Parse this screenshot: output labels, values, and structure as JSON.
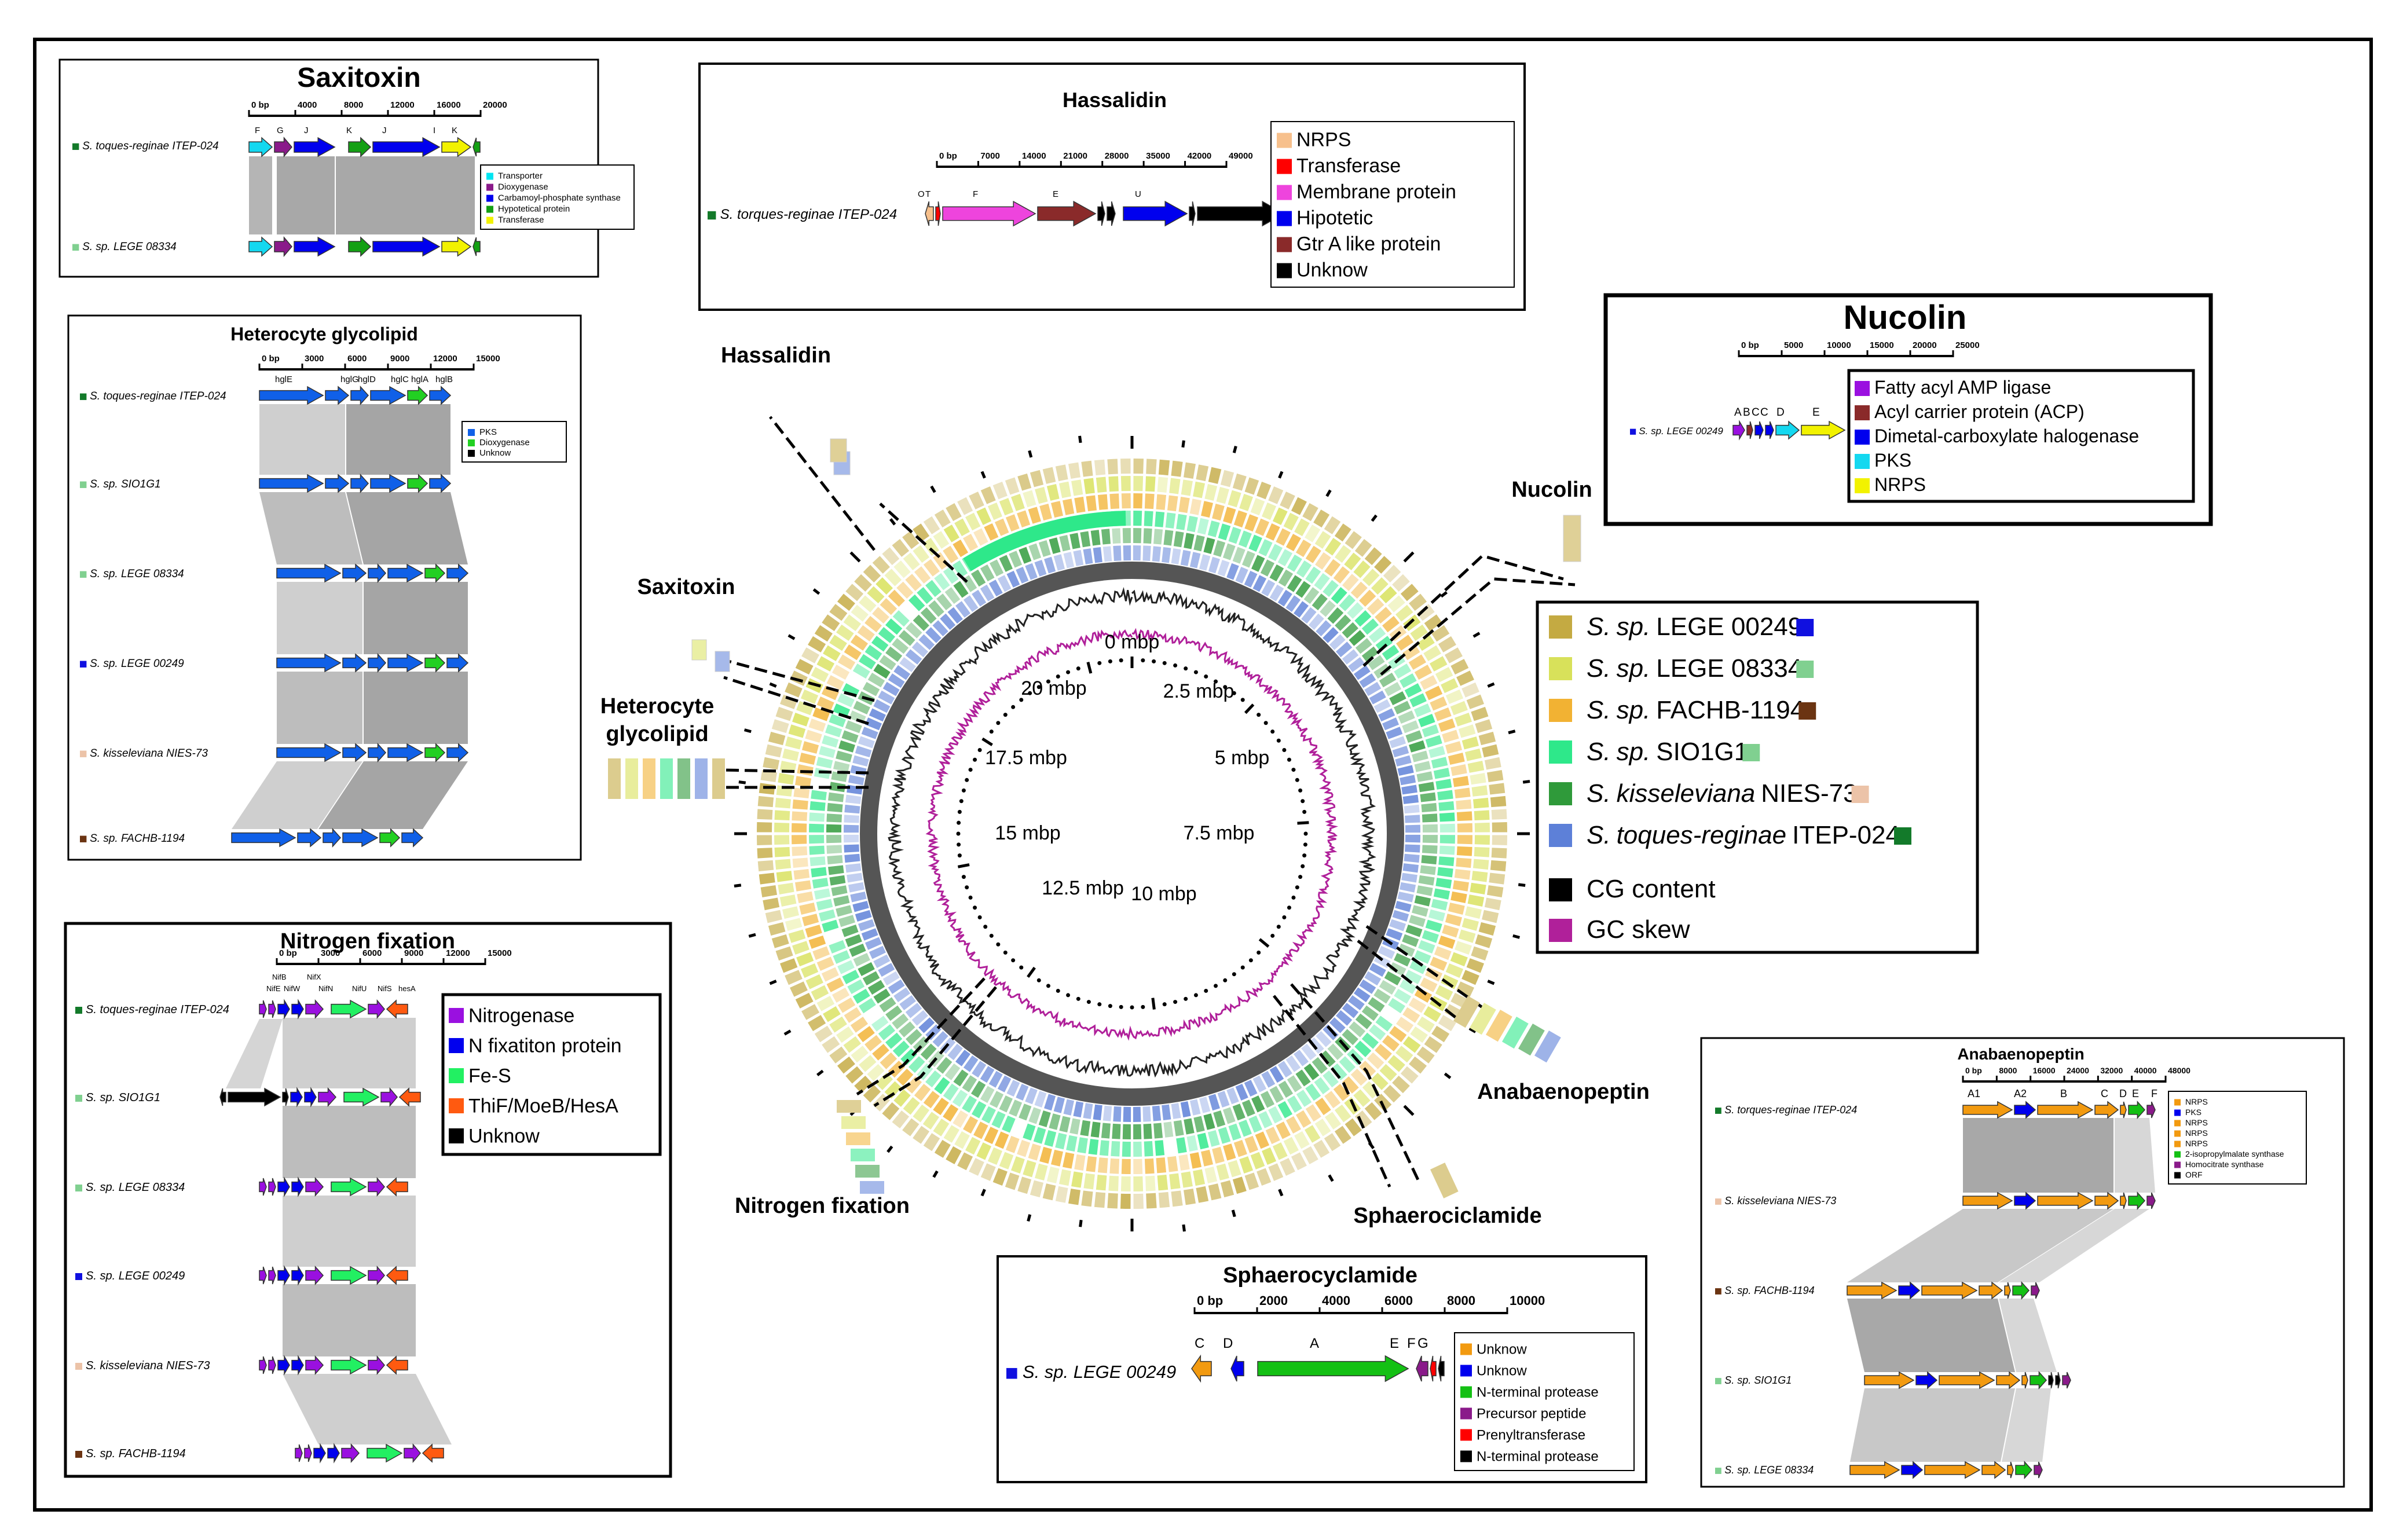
{
  "colors": {
    "black": "#000000",
    "link_dark": "#8f8f8f",
    "link_light": "#c8c8c8",
    "ring_dark": "#555555",
    "gc_content": "#222222",
    "gc_skew": "#b0209a"
  },
  "genomes": [
    {
      "code": "sp",
      "name": "LEGE 00249",
      "color": "#c4aa42",
      "tag": "#1010e0"
    },
    {
      "code": "sp",
      "name": "LEGE 08334",
      "color": "#d8e15a",
      "tag": "#80d090"
    },
    {
      "code": "sp",
      "name": "FACHB-1194",
      "color": "#f2b233",
      "tag": "#6b3412"
    },
    {
      "code": "sp",
      "name": "SIO1G1",
      "color": "#2ee88a",
      "tag": "#80d090"
    },
    {
      "code": "kisseleviana",
      "name": "NIES-73",
      "color": "#2f9a3a",
      "tag": "#ecc3a8"
    },
    {
      "code": "toques-reginae",
      "name": "ITEP-024",
      "color": "#5d80d8",
      "tag": "#137a2a"
    }
  ],
  "legend": {
    "genus": "S.",
    "species": [
      "sp.",
      "sp.",
      "sp.",
      "sp.",
      "kisseleviana",
      "toques-reginae"
    ],
    "strains": [
      "LEGE 00249",
      "LEGE 08334",
      "FACHB-1194",
      "SIO1G1",
      "NIES-73",
      "ITEP-024"
    ],
    "gc_content": "CG content",
    "gc_skew": "GC skew"
  },
  "circle": {
    "scale_labels": [
      "0 mbp",
      "2.5 mbp",
      "5 mbp",
      "7.5 mbp",
      "10 mbp",
      "12.5 mbp",
      "15 mbp",
      "17.5 mbp",
      "20 mbp"
    ],
    "cluster_labels": {
      "hassalidin": "Hassalidin",
      "nucolin": "Nucolin",
      "saxitoxin": "Saxitoxin",
      "heterocyte": [
        "Heterocyte",
        "glycolipid"
      ],
      "anabaenopeptin": "Anabaenopeptin",
      "sphaerociclamide": "Sphaerociclamide",
      "nitrogen": "Nitrogen fixation"
    }
  },
  "panels": {
    "saxitoxin": {
      "title": "Saxitoxin",
      "scale": [
        "0 bp",
        "4000",
        "8000",
        "12000",
        "16000",
        "20000"
      ],
      "gene_letters": [
        "F",
        "G",
        "J",
        "K",
        "J",
        "I",
        "K"
      ],
      "strains": [
        "S. toques-reginae ITEP-024",
        "S. sp. LEGE 08334"
      ],
      "legend": [
        {
          "label": "Transporter",
          "color": "#00e5f2"
        },
        {
          "label": "Dioxygenase",
          "color": "#8a1a8a"
        },
        {
          "label": "Carbamoyl-phosphate synthase",
          "color": "#0000ee"
        },
        {
          "label": "Hypotetical protein",
          "color": "#14a014"
        },
        {
          "label": "Transferase",
          "color": "#f2f200"
        }
      ]
    },
    "hassalidin": {
      "title": "Hassalidin",
      "scale": [
        "0 bp",
        "7000",
        "14000",
        "21000",
        "28000",
        "35000",
        "42000",
        "49000"
      ],
      "gene_letters": [
        "O",
        "T",
        "F",
        "E",
        "U"
      ],
      "strain": "S. torques-reginae ITEP-024",
      "legend": [
        {
          "label": "NRPS",
          "color": "#f7c08c"
        },
        {
          "label": "Transferase",
          "color": "#ff0000"
        },
        {
          "label": "Membrane protein",
          "color": "#ee44dd"
        },
        {
          "label": "Hipotetic",
          "color": "#0000ee"
        },
        {
          "label": "Gtr A like protein",
          "color": "#8a2a2a"
        },
        {
          "label": "Unknow",
          "color": "#000000"
        }
      ]
    },
    "nucolin": {
      "title": "Nucolin",
      "scale": [
        "0 bp",
        "5000",
        "10000",
        "15000",
        "20000",
        "25000"
      ],
      "gene_letters": [
        "A",
        "B",
        "C",
        "C",
        "D",
        "E"
      ],
      "strain": "S. sp. LEGE 00249",
      "legend": [
        {
          "label": "Fatty acyl AMP ligase",
          "color": "#9a10e0"
        },
        {
          "label": "Acyl carrier protein (ACP)",
          "color": "#8a2a2a"
        },
        {
          "label": "Dimetal-carboxylate halogenase",
          "color": "#0000ee"
        },
        {
          "label": "PKS",
          "color": "#14d8f0"
        },
        {
          "label": "NRPS",
          "color": "#f2f200"
        }
      ]
    },
    "heterocyte": {
      "title": "Heterocyte glycolipid",
      "scale": [
        "0 bp",
        "3000",
        "6000",
        "9000",
        "12000",
        "15000"
      ],
      "gene_letters": [
        "hglE",
        "hglG",
        "hglD",
        "hglC",
        "hglA",
        "hglB"
      ],
      "strains": [
        "S. toques-reginae ITEP-024",
        "S. sp. SIO1G1",
        "S. sp. LEGE 08334",
        "S. sp. LEGE 00249",
        "S. kisseleviana NIES-73",
        "S. sp. FACHB-1194"
      ],
      "legend": [
        {
          "label": "PKS",
          "color": "#1060e8"
        },
        {
          "label": "Dioxygenase",
          "color": "#22d022"
        },
        {
          "label": "Unknow",
          "color": "#000000"
        }
      ]
    },
    "nitrogen": {
      "title": "Nitrogen fixation",
      "scale": [
        "0 bp",
        "3000",
        "6000",
        "9000",
        "12000",
        "15000"
      ],
      "gene_letters": [
        "NifB",
        "NifX",
        "NifE",
        "NifW",
        "NifN",
        "NifU",
        "NifS",
        "hesA"
      ],
      "strains": [
        "S. toques-reginae ITEP-024",
        "S. sp. SIO1G1",
        "S. sp. LEGE 08334",
        "S. sp. LEGE 00249",
        "S. kisseleviana NIES-73",
        "S. sp. FACHB-1194"
      ],
      "legend": [
        {
          "label": "Nitrogenase",
          "color": "#9a10e0"
        },
        {
          "label": "N fixatiton protein",
          "color": "#0000ee"
        },
        {
          "label": "Fe-S",
          "color": "#22f062"
        },
        {
          "label": "ThiF/MoeB/HesA",
          "color": "#ff5a10"
        },
        {
          "label": "Unknow",
          "color": "#000000"
        }
      ]
    },
    "sphaerocyclamide": {
      "title": "Sphaerocyclamide",
      "scale": [
        "0 bp",
        "2000",
        "4000",
        "6000",
        "8000",
        "10000"
      ],
      "gene_letters": [
        "C",
        "D",
        "A",
        "E",
        "F",
        "G"
      ],
      "strain": "S. sp. LEGE 00249",
      "legend": [
        {
          "label": "Unknow",
          "color": "#f29a10"
        },
        {
          "label": "Unknow",
          "color": "#0000ee"
        },
        {
          "label": "N-terminal protease",
          "color": "#14c014"
        },
        {
          "label": "Precursor peptide",
          "color": "#8a1a8a"
        },
        {
          "label": "Prenyltransferase",
          "color": "#ff0000"
        },
        {
          "label": "N-terminal protease",
          "color": "#000000"
        }
      ]
    },
    "anabaenopeptin": {
      "title": "Anabaenopeptin",
      "scale": [
        "0 bp",
        "8000",
        "16000",
        "24000",
        "32000",
        "40000",
        "48000"
      ],
      "gene_letters": [
        "A1",
        "A2",
        "B",
        "C",
        "D",
        "E",
        "F"
      ],
      "strains": [
        "S. torques-reginae ITEP-024",
        "S. kisseleviana NIES-73",
        "S. sp. FACHB-1194",
        "S. sp. SIO1G1",
        "S. sp. LEGE 08334"
      ],
      "legend": [
        {
          "label": "NRPS",
          "color": "#f29a10"
        },
        {
          "label": "PKS",
          "color": "#0000ee"
        },
        {
          "label": "NRPS",
          "color": "#f29a10"
        },
        {
          "label": "NRPS",
          "color": "#f29a10"
        },
        {
          "label": "NRPS",
          "color": "#f29a10"
        },
        {
          "label": "2-isopropylmalate synthase",
          "color": "#14c014"
        },
        {
          "label": "Homocitrate synthase",
          "color": "#8a1a8a"
        },
        {
          "label": "ORF",
          "color": "#000000"
        }
      ]
    }
  }
}
